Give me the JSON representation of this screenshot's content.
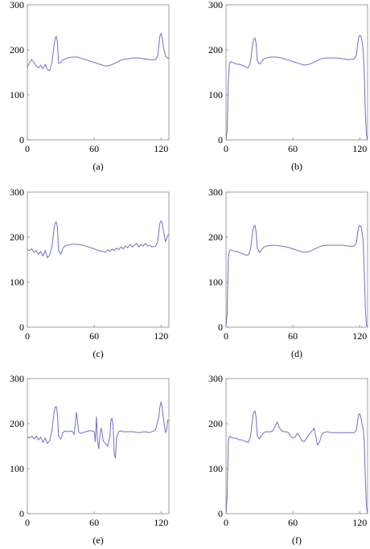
{
  "line_color": "#6f6fc8",
  "chart_data": [
    {
      "type": "line",
      "caption": "(a)",
      "xlim": [
        0,
        127
      ],
      "ylim": [
        0,
        300
      ],
      "xticks": [
        0,
        60,
        120
      ],
      "yticks": [
        0,
        100,
        200,
        300
      ],
      "series": [
        {
          "x": [
            0,
            2,
            4,
            6,
            8,
            10,
            12,
            14,
            16,
            18,
            20,
            22,
            24,
            25,
            26,
            27,
            28,
            30,
            32,
            34,
            36,
            40,
            45,
            50,
            55,
            60,
            65,
            70,
            75,
            80,
            85,
            90,
            95,
            100,
            105,
            110,
            115,
            117,
            118,
            119,
            120,
            121,
            122,
            124,
            126,
            127
          ],
          "y": [
            162,
            172,
            178,
            172,
            164,
            160,
            166,
            158,
            168,
            156,
            154,
            172,
            210,
            226,
            230,
            216,
            170,
            172,
            178,
            180,
            182,
            184,
            184,
            180,
            176,
            172,
            168,
            164,
            166,
            172,
            178,
            180,
            182,
            182,
            180,
            178,
            178,
            186,
            210,
            232,
            236,
            228,
            206,
            186,
            182,
            182
          ]
        }
      ]
    },
    {
      "type": "line",
      "caption": "(b)",
      "xlim": [
        0,
        127
      ],
      "ylim": [
        0,
        300
      ],
      "xticks": [
        0,
        60,
        120
      ],
      "yticks": [
        0,
        100,
        200,
        300
      ],
      "series": [
        {
          "x": [
            0,
            1,
            2,
            3,
            4,
            6,
            8,
            10,
            12,
            14,
            16,
            18,
            20,
            22,
            24,
            25,
            26,
            27,
            28,
            30,
            32,
            34,
            36,
            40,
            45,
            50,
            55,
            60,
            65,
            70,
            75,
            80,
            85,
            90,
            95,
            100,
            105,
            110,
            115,
            117,
            118,
            119,
            120,
            121,
            122,
            123,
            124,
            125,
            126,
            127
          ],
          "y": [
            0,
            20,
            130,
            168,
            174,
            172,
            170,
            168,
            168,
            166,
            164,
            162,
            160,
            174,
            214,
            224,
            226,
            214,
            176,
            168,
            174,
            180,
            182,
            184,
            184,
            182,
            178,
            174,
            170,
            166,
            168,
            174,
            180,
            182,
            182,
            182,
            180,
            178,
            180,
            188,
            210,
            228,
            232,
            230,
            220,
            200,
            150,
            60,
            10,
            0
          ]
        }
      ]
    },
    {
      "type": "line",
      "caption": "(c)",
      "xlim": [
        0,
        127
      ],
      "ylim": [
        0,
        300
      ],
      "xticks": [
        0,
        60,
        120
      ],
      "yticks": [
        0,
        100,
        200,
        300
      ],
      "series": [
        {
          "x": [
            0,
            2,
            4,
            6,
            8,
            10,
            12,
            14,
            16,
            18,
            20,
            22,
            24,
            25,
            26,
            27,
            28,
            30,
            32,
            34,
            36,
            40,
            45,
            50,
            55,
            60,
            64,
            68,
            70,
            72,
            74,
            76,
            78,
            80,
            82,
            84,
            86,
            88,
            90,
            92,
            94,
            96,
            98,
            100,
            102,
            104,
            106,
            108,
            110,
            112,
            115,
            117,
            118,
            119,
            120,
            121,
            122,
            124,
            126,
            127
          ],
          "y": [
            172,
            170,
            174,
            166,
            170,
            162,
            168,
            158,
            170,
            154,
            160,
            178,
            220,
            232,
            234,
            222,
            170,
            162,
            176,
            180,
            182,
            184,
            184,
            182,
            178,
            174,
            170,
            168,
            166,
            172,
            168,
            174,
            170,
            176,
            172,
            178,
            174,
            180,
            176,
            184,
            178,
            182,
            186,
            178,
            184,
            180,
            186,
            180,
            182,
            178,
            180,
            190,
            212,
            232,
            236,
            232,
            214,
            190,
            204,
            206
          ]
        }
      ]
    },
    {
      "type": "line",
      "caption": "(d)",
      "xlim": [
        0,
        127
      ],
      "ylim": [
        0,
        300
      ],
      "xticks": [
        0,
        60,
        120
      ],
      "yticks": [
        0,
        100,
        200,
        300
      ],
      "series": [
        {
          "x": [
            0,
            1,
            2,
            3,
            4,
            6,
            8,
            10,
            12,
            14,
            16,
            18,
            20,
            22,
            24,
            25,
            26,
            27,
            28,
            30,
            32,
            34,
            36,
            40,
            45,
            50,
            55,
            60,
            65,
            70,
            75,
            80,
            85,
            90,
            95,
            100,
            105,
            110,
            115,
            117,
            118,
            119,
            120,
            121,
            122,
            123,
            124,
            125,
            126,
            127
          ],
          "y": [
            0,
            30,
            150,
            170,
            172,
            170,
            168,
            168,
            166,
            164,
            162,
            160,
            160,
            174,
            214,
            224,
            226,
            212,
            176,
            166,
            172,
            178,
            180,
            182,
            182,
            180,
            178,
            174,
            170,
            166,
            168,
            174,
            180,
            182,
            182,
            182,
            182,
            180,
            180,
            188,
            208,
            222,
            226,
            224,
            212,
            190,
            130,
            40,
            5,
            0
          ]
        }
      ]
    },
    {
      "type": "line",
      "caption": "(e)",
      "xlim": [
        0,
        127
      ],
      "ylim": [
        0,
        300
      ],
      "xticks": [
        0,
        60,
        120
      ],
      "yticks": [
        0,
        100,
        200,
        300
      ],
      "series": [
        {
          "x": [
            0,
            2,
            4,
            6,
            8,
            10,
            12,
            14,
            16,
            18,
            20,
            22,
            24,
            25,
            26,
            27,
            28,
            30,
            32,
            34,
            36,
            40,
            42,
            43,
            44,
            45,
            46,
            48,
            50,
            55,
            58,
            60,
            61,
            62,
            63,
            64,
            65,
            66,
            67,
            68,
            70,
            72,
            74,
            75,
            76,
            77,
            78,
            79,
            80,
            82,
            84,
            86,
            90,
            95,
            100,
            105,
            110,
            115,
            118,
            119,
            120,
            121,
            122,
            123,
            124,
            125,
            126,
            127
          ],
          "y": [
            170,
            168,
            172,
            166,
            172,
            164,
            170,
            158,
            168,
            156,
            162,
            184,
            226,
            236,
            238,
            222,
            172,
            166,
            180,
            184,
            182,
            184,
            176,
            200,
            225,
            206,
            182,
            178,
            180,
            184,
            184,
            182,
            160,
            215,
            162,
            144,
            170,
            190,
            182,
            162,
            156,
            150,
            170,
            208,
            212,
            192,
            130,
            124,
            168,
            182,
            184,
            182,
            182,
            182,
            180,
            182,
            180,
            186,
            216,
            238,
            248,
            236,
            212,
            196,
            180,
            186,
            208,
            206
          ]
        }
      ]
    },
    {
      "type": "line",
      "caption": "(f)",
      "xlim": [
        0,
        127
      ],
      "ylim": [
        0,
        300
      ],
      "xticks": [
        0,
        60,
        120
      ],
      "yticks": [
        0,
        100,
        200,
        300
      ],
      "series": [
        {
          "x": [
            0,
            1,
            2,
            3,
            4,
            6,
            8,
            10,
            12,
            14,
            16,
            18,
            20,
            22,
            24,
            25,
            26,
            27,
            28,
            30,
            32,
            34,
            36,
            40,
            42,
            44,
            46,
            48,
            50,
            52,
            54,
            56,
            58,
            60,
            62,
            64,
            66,
            68,
            70,
            72,
            74,
            76,
            78,
            79,
            80,
            82,
            84,
            86,
            88,
            90,
            95,
            100,
            105,
            110,
            115,
            117,
            118,
            119,
            120,
            121,
            122,
            123,
            124,
            125,
            126,
            127
          ],
          "y": [
            0,
            40,
            160,
            172,
            170,
            168,
            168,
            166,
            164,
            164,
            162,
            160,
            158,
            172,
            216,
            226,
            228,
            214,
            174,
            166,
            174,
            180,
            182,
            182,
            184,
            194,
            204,
            190,
            184,
            182,
            182,
            180,
            172,
            168,
            170,
            178,
            172,
            162,
            160,
            166,
            174,
            180,
            186,
            190,
            178,
            152,
            160,
            176,
            180,
            182,
            180,
            180,
            180,
            180,
            180,
            186,
            204,
            220,
            222,
            214,
            198,
            190,
            160,
            80,
            15,
            0
          ]
        }
      ]
    }
  ]
}
